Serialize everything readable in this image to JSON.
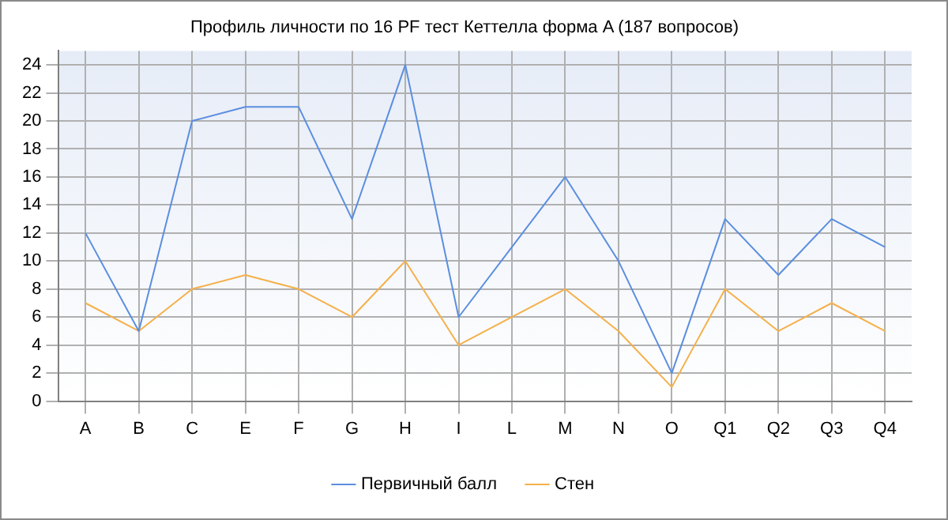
{
  "chart_data": {
    "type": "line",
    "title": "Профиль личности по 16 PF тест Кеттелла форма A (187 вопросов)",
    "categories": [
      "A",
      "B",
      "C",
      "E",
      "F",
      "G",
      "H",
      "I",
      "L",
      "M",
      "N",
      "O",
      "Q1",
      "Q2",
      "Q3",
      "Q4"
    ],
    "series": [
      {
        "name": "Первичный балл",
        "color": "#5b8ee0",
        "values": [
          12,
          5,
          20,
          21,
          21,
          13,
          24,
          6,
          11,
          16,
          10,
          2,
          13,
          9,
          13,
          11
        ]
      },
      {
        "name": "Стен",
        "color": "#f5b04a",
        "values": [
          7,
          5,
          8,
          9,
          8,
          6,
          10,
          4,
          6,
          8,
          5,
          1,
          8,
          5,
          7,
          5
        ]
      }
    ],
    "ylim": [
      0,
      25
    ],
    "yticks": [
      0,
      2,
      4,
      6,
      8,
      10,
      12,
      14,
      16,
      18,
      20,
      22,
      24
    ],
    "grid": true,
    "legend": "bottom",
    "marker": "none",
    "line_style": "solid"
  }
}
